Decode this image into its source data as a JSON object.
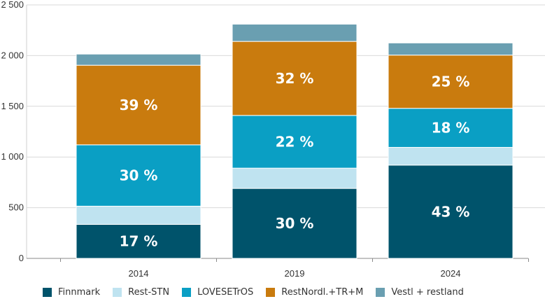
{
  "chart_data": {
    "type": "bar",
    "stacked": true,
    "categories": [
      "2014",
      "2019",
      "2024"
    ],
    "ylim": [
      0,
      2500
    ],
    "yticks": [
      0,
      500,
      1000,
      1500,
      2000,
      2500
    ],
    "ytick_labels": [
      "0",
      "500",
      "1 000",
      "1 500",
      "2 000",
      "2 500"
    ],
    "grid": "horizontal",
    "legend_position": "bottom",
    "series": [
      {
        "name": "Finnmark",
        "color": "#00536b",
        "values": [
          335,
          690,
          920
        ],
        "labels": [
          "17 %",
          "30 %",
          "43 %"
        ]
      },
      {
        "name": "Rest-STN",
        "color": "#bfe3f0",
        "values": [
          180,
          200,
          175
        ],
        "labels": [
          "",
          "",
          ""
        ]
      },
      {
        "name": "LOVESETrOS",
        "color": "#0a9fc4",
        "values": [
          605,
          520,
          385
        ],
        "labels": [
          "30 %",
          "22 %",
          "18 %"
        ]
      },
      {
        "name": "RestNordl.+TR+M",
        "color": "#c97b0e",
        "values": [
          785,
          730,
          525
        ],
        "labels": [
          "39 %",
          "32 %",
          "25 %"
        ]
      },
      {
        "name": "Vestl + restland",
        "color": "#6a9fb1",
        "values": [
          110,
          170,
          120
        ],
        "labels": [
          "",
          "",
          ""
        ]
      }
    ]
  }
}
